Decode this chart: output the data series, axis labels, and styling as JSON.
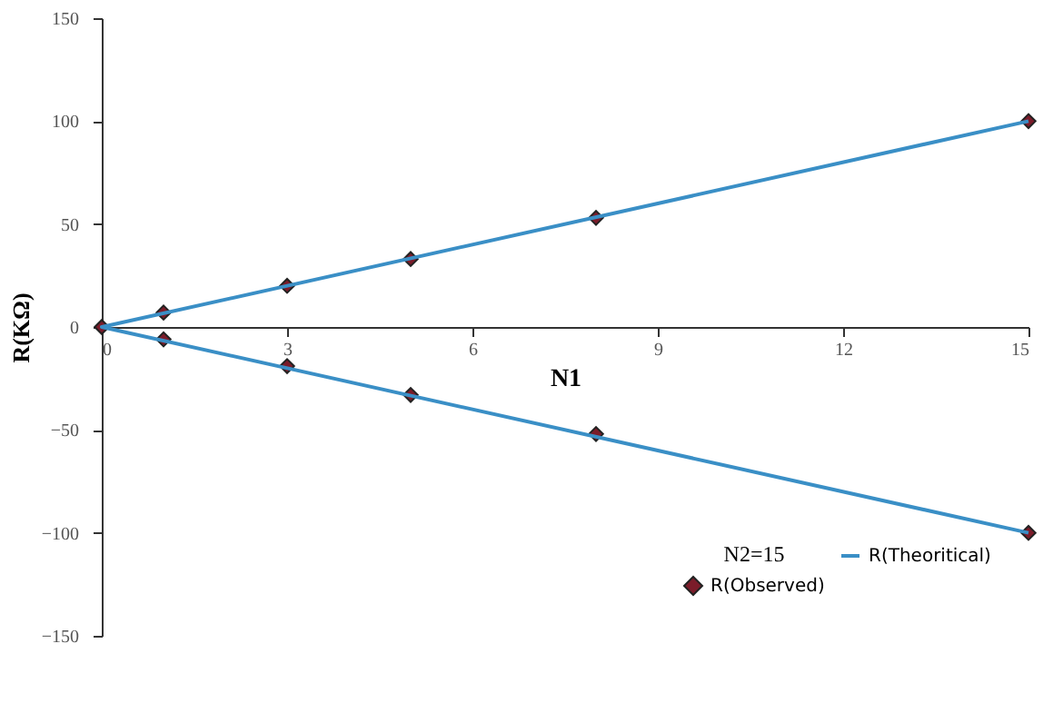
{
  "chart_data": {
    "type": "scatter",
    "xlabel": "N1",
    "ylabel": "R(KΩ)",
    "legend_title": "N2=15",
    "xlim": [
      0,
      15
    ],
    "xticks": [
      0,
      3,
      6,
      9,
      12,
      15
    ],
    "ylim": [
      -150,
      150
    ],
    "yticks": [
      -150,
      -100,
      -50,
      0,
      50,
      100,
      150
    ],
    "grid": false,
    "legend": "bottom right",
    "series": [
      {
        "name": "R(Observed)",
        "marker": "diamond",
        "color": "#7b1c2a",
        "x": [
          0,
          1,
          3,
          5,
          8,
          15,
          1,
          3,
          5,
          8,
          15
        ],
        "values": [
          0,
          7,
          20,
          33,
          53,
          100,
          -6,
          -19,
          -33,
          -52,
          -100
        ]
      },
      {
        "name": "R(Theoritical)",
        "type": "line",
        "marker": "none",
        "color": "#3a8fc6",
        "line_style": "solid",
        "x": [
          15,
          0,
          15
        ],
        "values": [
          100,
          0,
          -100
        ]
      }
    ]
  }
}
